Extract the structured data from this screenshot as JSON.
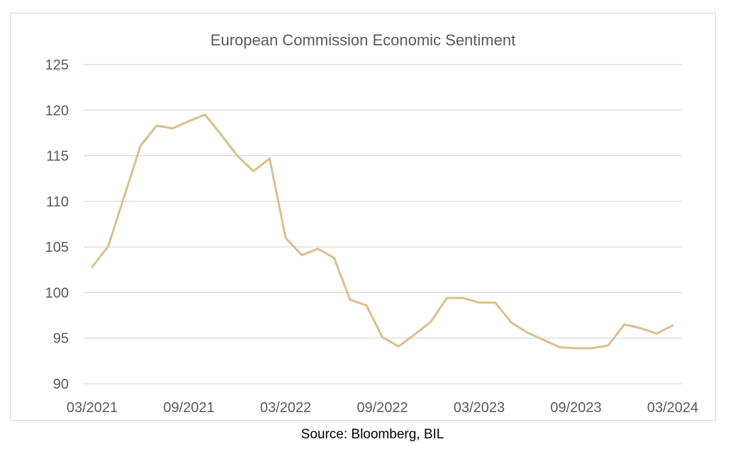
{
  "source": "Source: Bloomberg, BIL",
  "colors": {
    "line": "#d8bf8c",
    "grid": "#d9d9d9",
    "text": "#595959"
  },
  "chart_data": {
    "type": "line",
    "title": "European Commission Economic Sentiment",
    "xlabel": "",
    "ylabel": "",
    "ylim": [
      90,
      125
    ],
    "yticks": [
      90,
      95,
      100,
      105,
      110,
      115,
      120,
      125
    ],
    "xtick_labels": [
      "03/2021",
      "09/2021",
      "03/2022",
      "09/2022",
      "03/2023",
      "09/2023",
      "03/2024"
    ],
    "grid": true,
    "legend": "none",
    "x": [
      "03/2021",
      "04/2021",
      "05/2021",
      "06/2021",
      "07/2021",
      "08/2021",
      "09/2021",
      "10/2021",
      "11/2021",
      "12/2021",
      "01/2022",
      "02/2022",
      "03/2022",
      "04/2022",
      "05/2022",
      "06/2022",
      "07/2022",
      "08/2022",
      "09/2022",
      "10/2022",
      "11/2022",
      "12/2022",
      "01/2023",
      "02/2023",
      "03/2023",
      "04/2023",
      "05/2023",
      "06/2023",
      "07/2023",
      "08/2023",
      "09/2023",
      "10/2023",
      "11/2023",
      "12/2023",
      "01/2024",
      "02/2024",
      "03/2024"
    ],
    "series": [
      {
        "values": [
          102.8,
          105.1,
          110.6,
          116.1,
          118.3,
          118.0,
          118.8,
          119.5,
          117.3,
          115.0,
          113.3,
          114.7,
          106.0,
          104.1,
          104.8,
          103.8,
          99.2,
          98.6,
          95.1,
          94.1,
          95.4,
          96.8,
          99.4,
          99.4,
          98.9,
          98.9,
          96.7,
          95.6,
          94.8,
          94.0,
          93.9,
          93.9,
          94.2,
          96.5,
          96.1,
          95.5,
          96.4
        ]
      }
    ]
  }
}
